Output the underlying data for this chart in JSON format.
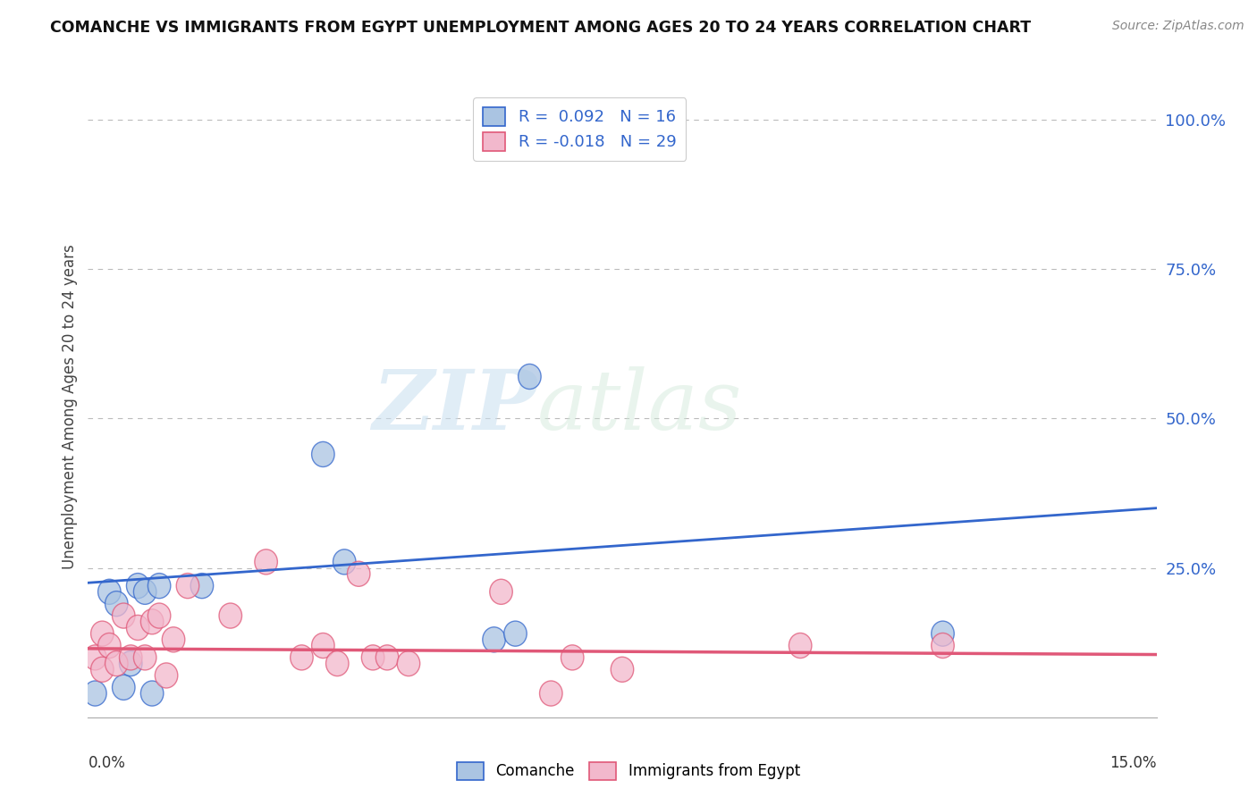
{
  "title": "COMANCHE VS IMMIGRANTS FROM EGYPT UNEMPLOYMENT AMONG AGES 20 TO 24 YEARS CORRELATION CHART",
  "source": "Source: ZipAtlas.com",
  "ylabel": "Unemployment Among Ages 20 to 24 years",
  "xlim": [
    0.0,
    0.15
  ],
  "ylim": [
    0.0,
    1.04
  ],
  "ytick_vals": [
    0.25,
    0.5,
    0.75,
    1.0
  ],
  "ytick_labels": [
    "25.0%",
    "50.0%",
    "75.0%",
    "100.0%"
  ],
  "comanche_color": "#aac4e2",
  "immigrants_color": "#f2b8cc",
  "line_blue": "#3366cc",
  "line_pink": "#e05878",
  "comanche_x": [
    0.001,
    0.003,
    0.004,
    0.005,
    0.006,
    0.007,
    0.008,
    0.009,
    0.01,
    0.016,
    0.033,
    0.036,
    0.057,
    0.06,
    0.062,
    0.12
  ],
  "comanche_y": [
    0.04,
    0.21,
    0.19,
    0.05,
    0.09,
    0.22,
    0.21,
    0.04,
    0.22,
    0.22,
    0.44,
    0.26,
    0.13,
    0.14,
    0.57,
    0.14
  ],
  "immigrants_x": [
    0.001,
    0.002,
    0.002,
    0.003,
    0.004,
    0.005,
    0.006,
    0.007,
    0.008,
    0.009,
    0.01,
    0.011,
    0.012,
    0.014,
    0.02,
    0.025,
    0.03,
    0.033,
    0.035,
    0.038,
    0.04,
    0.042,
    0.045,
    0.058,
    0.065,
    0.068,
    0.075,
    0.1,
    0.12
  ],
  "immigrants_y": [
    0.1,
    0.08,
    0.14,
    0.12,
    0.09,
    0.17,
    0.1,
    0.15,
    0.1,
    0.16,
    0.17,
    0.07,
    0.13,
    0.22,
    0.17,
    0.26,
    0.1,
    0.12,
    0.09,
    0.24,
    0.1,
    0.1,
    0.09,
    0.21,
    0.04,
    0.1,
    0.08,
    0.12,
    0.12
  ],
  "blue_line_x": [
    0.0,
    0.15
  ],
  "blue_line_y": [
    0.225,
    0.35
  ],
  "pink_line_x": [
    0.0,
    0.15
  ],
  "pink_line_y": [
    0.115,
    0.105
  ],
  "watermark_top": "ZIP",
  "watermark_bot": "atlas",
  "background_color": "#ffffff",
  "grid_color": "#bbbbbb",
  "title_color": "#111111",
  "source_color": "#888888",
  "ylabel_color": "#444444",
  "tick_color": "#3366cc",
  "bottom_label_color": "#333333",
  "legend1_label": "R =  0.092   N = 16",
  "legend2_label": "R = -0.018   N = 29",
  "bot_legend1": "Comanche",
  "bot_legend2": "Immigrants from Egypt"
}
